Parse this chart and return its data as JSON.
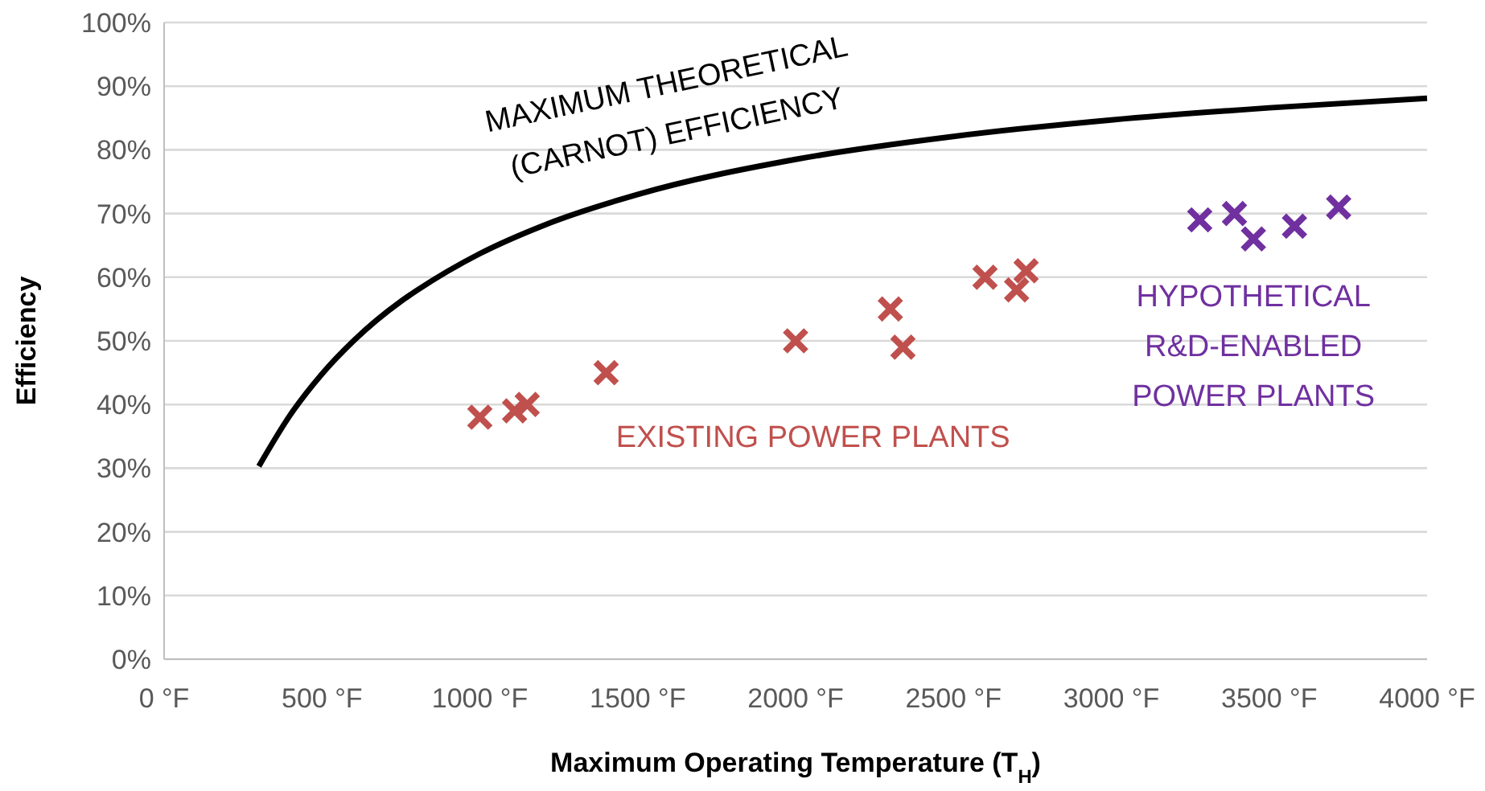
{
  "chart_data": {
    "type": "scatter",
    "xlabel": "Maximum Operating Temperature (T$_{H}$)",
    "ylabel": "Efficiency",
    "xlim": [
      0,
      4000
    ],
    "ylim": [
      0,
      100
    ],
    "xticks": [
      {
        "value": 0,
        "label": "0 °F"
      },
      {
        "value": 500,
        "label": "500 °F"
      },
      {
        "value": 1000,
        "label": "1000 °F"
      },
      {
        "value": 1500,
        "label": "1500 °F"
      },
      {
        "value": 2000,
        "label": "2000 °F"
      },
      {
        "value": 2500,
        "label": "2500 °F"
      },
      {
        "value": 3000,
        "label": "3000 °F"
      },
      {
        "value": 3500,
        "label": "3500 °F"
      },
      {
        "value": 4000,
        "label": "4000 °F"
      }
    ],
    "yticks": [
      {
        "value": 0,
        "label": "0%"
      },
      {
        "value": 10,
        "label": "10%"
      },
      {
        "value": 20,
        "label": "20%"
      },
      {
        "value": 30,
        "label": "30%"
      },
      {
        "value": 40,
        "label": "40%"
      },
      {
        "value": 50,
        "label": "50%"
      },
      {
        "value": 60,
        "label": "60%"
      },
      {
        "value": 70,
        "label": "70%"
      },
      {
        "value": 80,
        "label": "80%"
      },
      {
        "value": 90,
        "label": "90%"
      },
      {
        "value": 100,
        "label": "100%"
      }
    ],
    "grid": "y",
    "marker": "cross",
    "series": [
      {
        "name": "MAXIMUM THEORETICAL\n(CARNOT) EFFICIENCY",
        "type": "line",
        "marker": "none",
        "color": "#000000",
        "x": [
          300,
          400,
          500,
          600,
          750,
          800,
          1000,
          1200,
          1500,
          2000,
          2500,
          3000,
          3500,
          4000
        ],
        "values": [
          30.3,
          38.4,
          44.8,
          50,
          56.2,
          57.9,
          63.7,
          68.1,
          73,
          78.5,
          82.1,
          84.7,
          86.6,
          88.1
        ]
      },
      {
        "name": "EXISTING POWER PLANTS",
        "color": "#c0504d",
        "x": [
          1000,
          1110,
          1150,
          1400,
          2000,
          2300,
          2340,
          2600,
          2700,
          2730
        ],
        "values": [
          38,
          39,
          40,
          45,
          50,
          55,
          49,
          60,
          58,
          61
        ]
      },
      {
        "name": "HYPOTHETICAL\nR&D-ENABLED\nPOWER PLANTS",
        "color": "#7030a0",
        "x": [
          3280,
          3390,
          3450,
          3580,
          3720
        ],
        "values": [
          69,
          70,
          66,
          68,
          71
        ]
      }
    ]
  }
}
